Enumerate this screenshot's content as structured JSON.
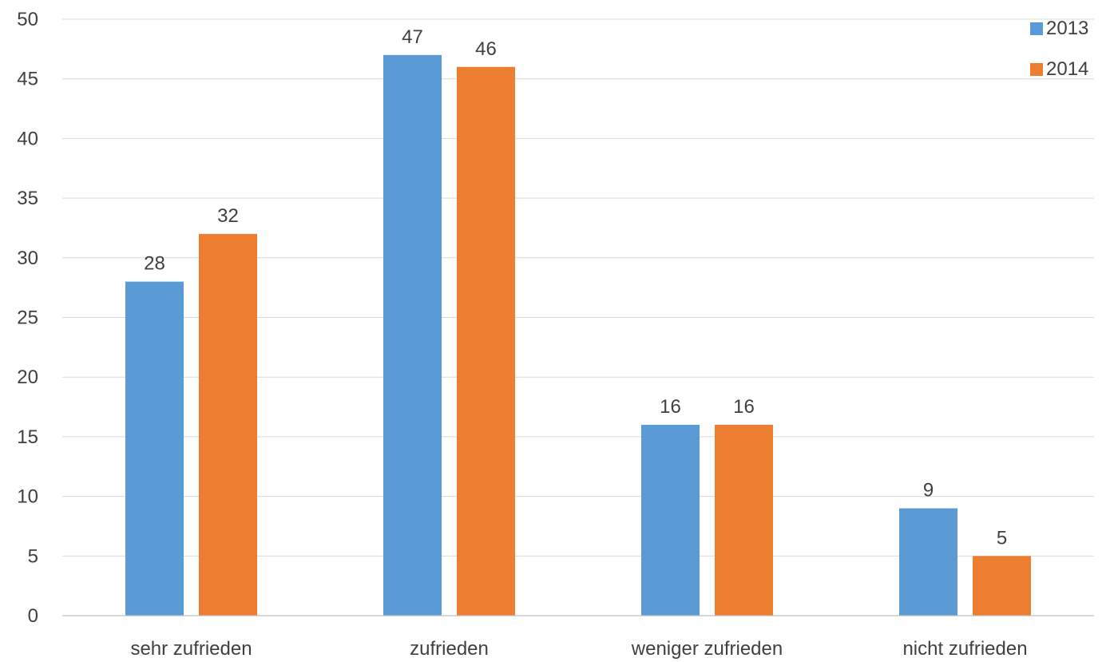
{
  "chart_data": {
    "type": "bar",
    "categories": [
      "sehr zufrieden",
      "zufrieden",
      "weniger zufrieden",
      "nicht zufrieden"
    ],
    "series": [
      {
        "name": "2013",
        "values": [
          28,
          47,
          16,
          9
        ],
        "color": "#5b9bd5"
      },
      {
        "name": "2014",
        "values": [
          32,
          46,
          16,
          5
        ],
        "color": "#ed7d31"
      }
    ],
    "ylim": [
      0,
      50
    ],
    "y_ticks": [
      0,
      5,
      10,
      15,
      20,
      25,
      30,
      35,
      40,
      45,
      50
    ],
    "grid": true,
    "legend_position": "top-right",
    "data_labels": true
  }
}
